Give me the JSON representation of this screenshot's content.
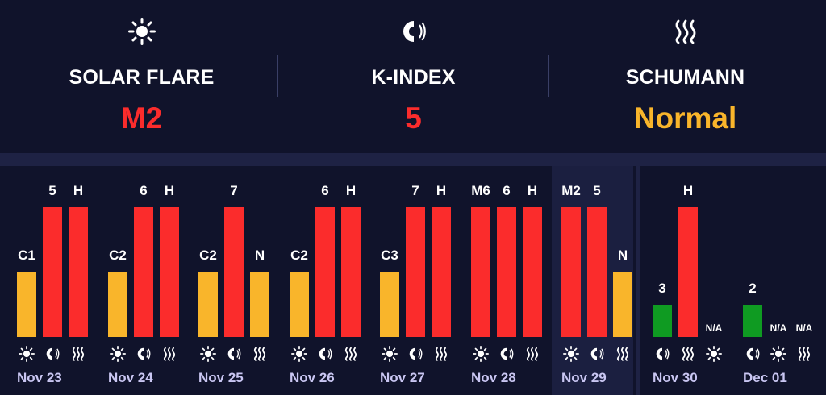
{
  "header": {
    "metrics": [
      {
        "label": "SOLAR FLARE",
        "value": "M2",
        "icon": "sun-icon",
        "value_color": "#fb2c2c"
      },
      {
        "label": "K-INDEX",
        "value": "5",
        "icon": "magnet-icon",
        "value_color": "#fb2c2c"
      },
      {
        "label": "SCHUMANN",
        "value": "Normal",
        "icon": "waves-icon",
        "value_color": "#f9b52b"
      }
    ]
  },
  "colors": {
    "background": "#10132b",
    "band": "#1e2244",
    "highlight": "#1b1f40",
    "red": "#fb2c2c",
    "yellow": "#f9b52b",
    "green": "#0f9b22",
    "date_text": "#c9c6f2"
  },
  "timeline": {
    "days": [
      {
        "date": "Nov 23",
        "bars": [
          {
            "type": "solar",
            "label": "C1",
            "level": 0.5,
            "color": "yellow"
          },
          {
            "type": "kindex",
            "label": "5",
            "level": 1,
            "color": "red"
          },
          {
            "type": "schumann",
            "label": "H",
            "level": 1,
            "color": "red"
          }
        ]
      },
      {
        "date": "Nov 24",
        "bars": [
          {
            "type": "solar",
            "label": "C2",
            "level": 0.5,
            "color": "yellow"
          },
          {
            "type": "kindex",
            "label": "6",
            "level": 1,
            "color": "red"
          },
          {
            "type": "schumann",
            "label": "H",
            "level": 1,
            "color": "red"
          }
        ]
      },
      {
        "date": "Nov 25",
        "bars": [
          {
            "type": "solar",
            "label": "C2",
            "level": 0.5,
            "color": "yellow"
          },
          {
            "type": "kindex",
            "label": "7",
            "level": 1,
            "color": "red"
          },
          {
            "type": "schumann",
            "label": "N",
            "level": 0.5,
            "color": "yellow"
          }
        ]
      },
      {
        "date": "Nov 26",
        "bars": [
          {
            "type": "solar",
            "label": "C2",
            "level": 0.5,
            "color": "yellow"
          },
          {
            "type": "kindex",
            "label": "6",
            "level": 1,
            "color": "red"
          },
          {
            "type": "schumann",
            "label": "H",
            "level": 1,
            "color": "red"
          }
        ]
      },
      {
        "date": "Nov 27",
        "bars": [
          {
            "type": "solar",
            "label": "C3",
            "level": 0.5,
            "color": "yellow"
          },
          {
            "type": "kindex",
            "label": "7",
            "level": 1,
            "color": "red"
          },
          {
            "type": "schumann",
            "label": "H",
            "level": 1,
            "color": "red"
          }
        ]
      },
      {
        "date": "Nov 28",
        "bars": [
          {
            "type": "solar",
            "label": "M6",
            "level": 1,
            "color": "red"
          },
          {
            "type": "kindex",
            "label": "6",
            "level": 1,
            "color": "red"
          },
          {
            "type": "schumann",
            "label": "H",
            "level": 1,
            "color": "red"
          }
        ]
      },
      {
        "date": "Nov 29",
        "highlight": true,
        "bars": [
          {
            "type": "solar",
            "label": "M2",
            "level": 1,
            "color": "red"
          },
          {
            "type": "kindex",
            "label": "5",
            "level": 1,
            "color": "red"
          },
          {
            "type": "schumann",
            "label": "N",
            "level": 0.5,
            "color": "yellow"
          }
        ]
      },
      {
        "date": "Nov 30",
        "bars": [
          {
            "type": "kindex",
            "label": "3",
            "level": 0.25,
            "color": "green"
          },
          {
            "type": "schumann",
            "label": "H",
            "level": 1,
            "color": "red"
          },
          {
            "type": "solar",
            "label": "N/A",
            "level": 0,
            "color": "none"
          }
        ]
      },
      {
        "date": "Dec 01",
        "bars": [
          {
            "type": "kindex",
            "label": "2",
            "level": 0.25,
            "color": "green"
          },
          {
            "type": "solar",
            "label": "N/A",
            "level": 0,
            "color": "none"
          },
          {
            "type": "schumann",
            "label": "N/A",
            "level": 0,
            "color": "none"
          }
        ]
      }
    ]
  }
}
